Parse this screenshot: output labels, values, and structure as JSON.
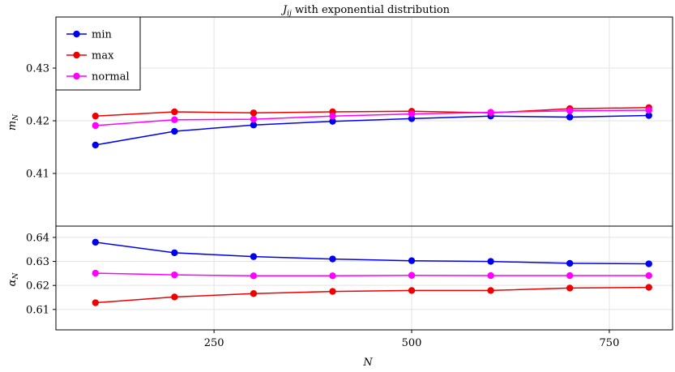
{
  "chart_data": [
    {
      "type": "line",
      "title": "J_ij with exponential distribution",
      "title_main": "J",
      "title_sub": "ij",
      "title_rest": " with exponential distribution",
      "ylabel": "m_N",
      "ylabel_main": "m",
      "ylabel_sub": "N",
      "xlabel": "",
      "x": [
        100,
        200,
        300,
        400,
        500,
        600,
        700,
        800
      ],
      "xlim": [
        50,
        830
      ],
      "ylim": [
        0.4,
        0.4397
      ],
      "yticks": [
        0.41,
        0.42,
        0.43
      ],
      "ytick_labels": [
        "0.41",
        "0.42",
        "0.43"
      ],
      "grid": true,
      "legend": "top-left",
      "series": [
        {
          "name": "min",
          "color": "#0000ee",
          "values": [
            0.4154,
            0.418,
            0.4192,
            0.4199,
            0.4204,
            0.4209,
            0.4207,
            0.421
          ]
        },
        {
          "name": "max",
          "color": "#ee0000",
          "values": [
            0.4209,
            0.4217,
            0.4215,
            0.4217,
            0.4218,
            0.4215,
            0.4223,
            0.4225
          ]
        },
        {
          "name": "normal",
          "color": "#ff00ff",
          "values": [
            0.4191,
            0.4202,
            0.4203,
            0.4209,
            0.4213,
            0.4216,
            0.4219,
            0.422
          ]
        }
      ]
    },
    {
      "type": "line",
      "xlabel": "N",
      "ylabel": "α_N",
      "ylabel_main": "α",
      "ylabel_sub": "N",
      "x": [
        100,
        200,
        300,
        400,
        500,
        600,
        700,
        800
      ],
      "xlim": [
        50,
        830
      ],
      "ylim": [
        0.6015,
        0.6447
      ],
      "xticks": [
        250,
        500,
        750
      ],
      "xtick_labels": [
        "250",
        "500",
        "750"
      ],
      "yticks": [
        0.61,
        0.62,
        0.63,
        0.64
      ],
      "ytick_labels": [
        "0.61",
        "0.62",
        "0.63",
        "0.64"
      ],
      "grid": true,
      "series": [
        {
          "name": "min",
          "color": "#0000ee",
          "values": [
            0.638,
            0.6336,
            0.632,
            0.631,
            0.6303,
            0.63,
            0.6292,
            0.629
          ]
        },
        {
          "name": "max",
          "color": "#ee0000",
          "values": [
            0.6128,
            0.6152,
            0.6166,
            0.6175,
            0.6179,
            0.6179,
            0.6189,
            0.6192
          ]
        },
        {
          "name": "normal",
          "color": "#ff00ff",
          "values": [
            0.6251,
            0.6244,
            0.624,
            0.624,
            0.6242,
            0.6241,
            0.6241,
            0.6241
          ]
        }
      ]
    }
  ]
}
